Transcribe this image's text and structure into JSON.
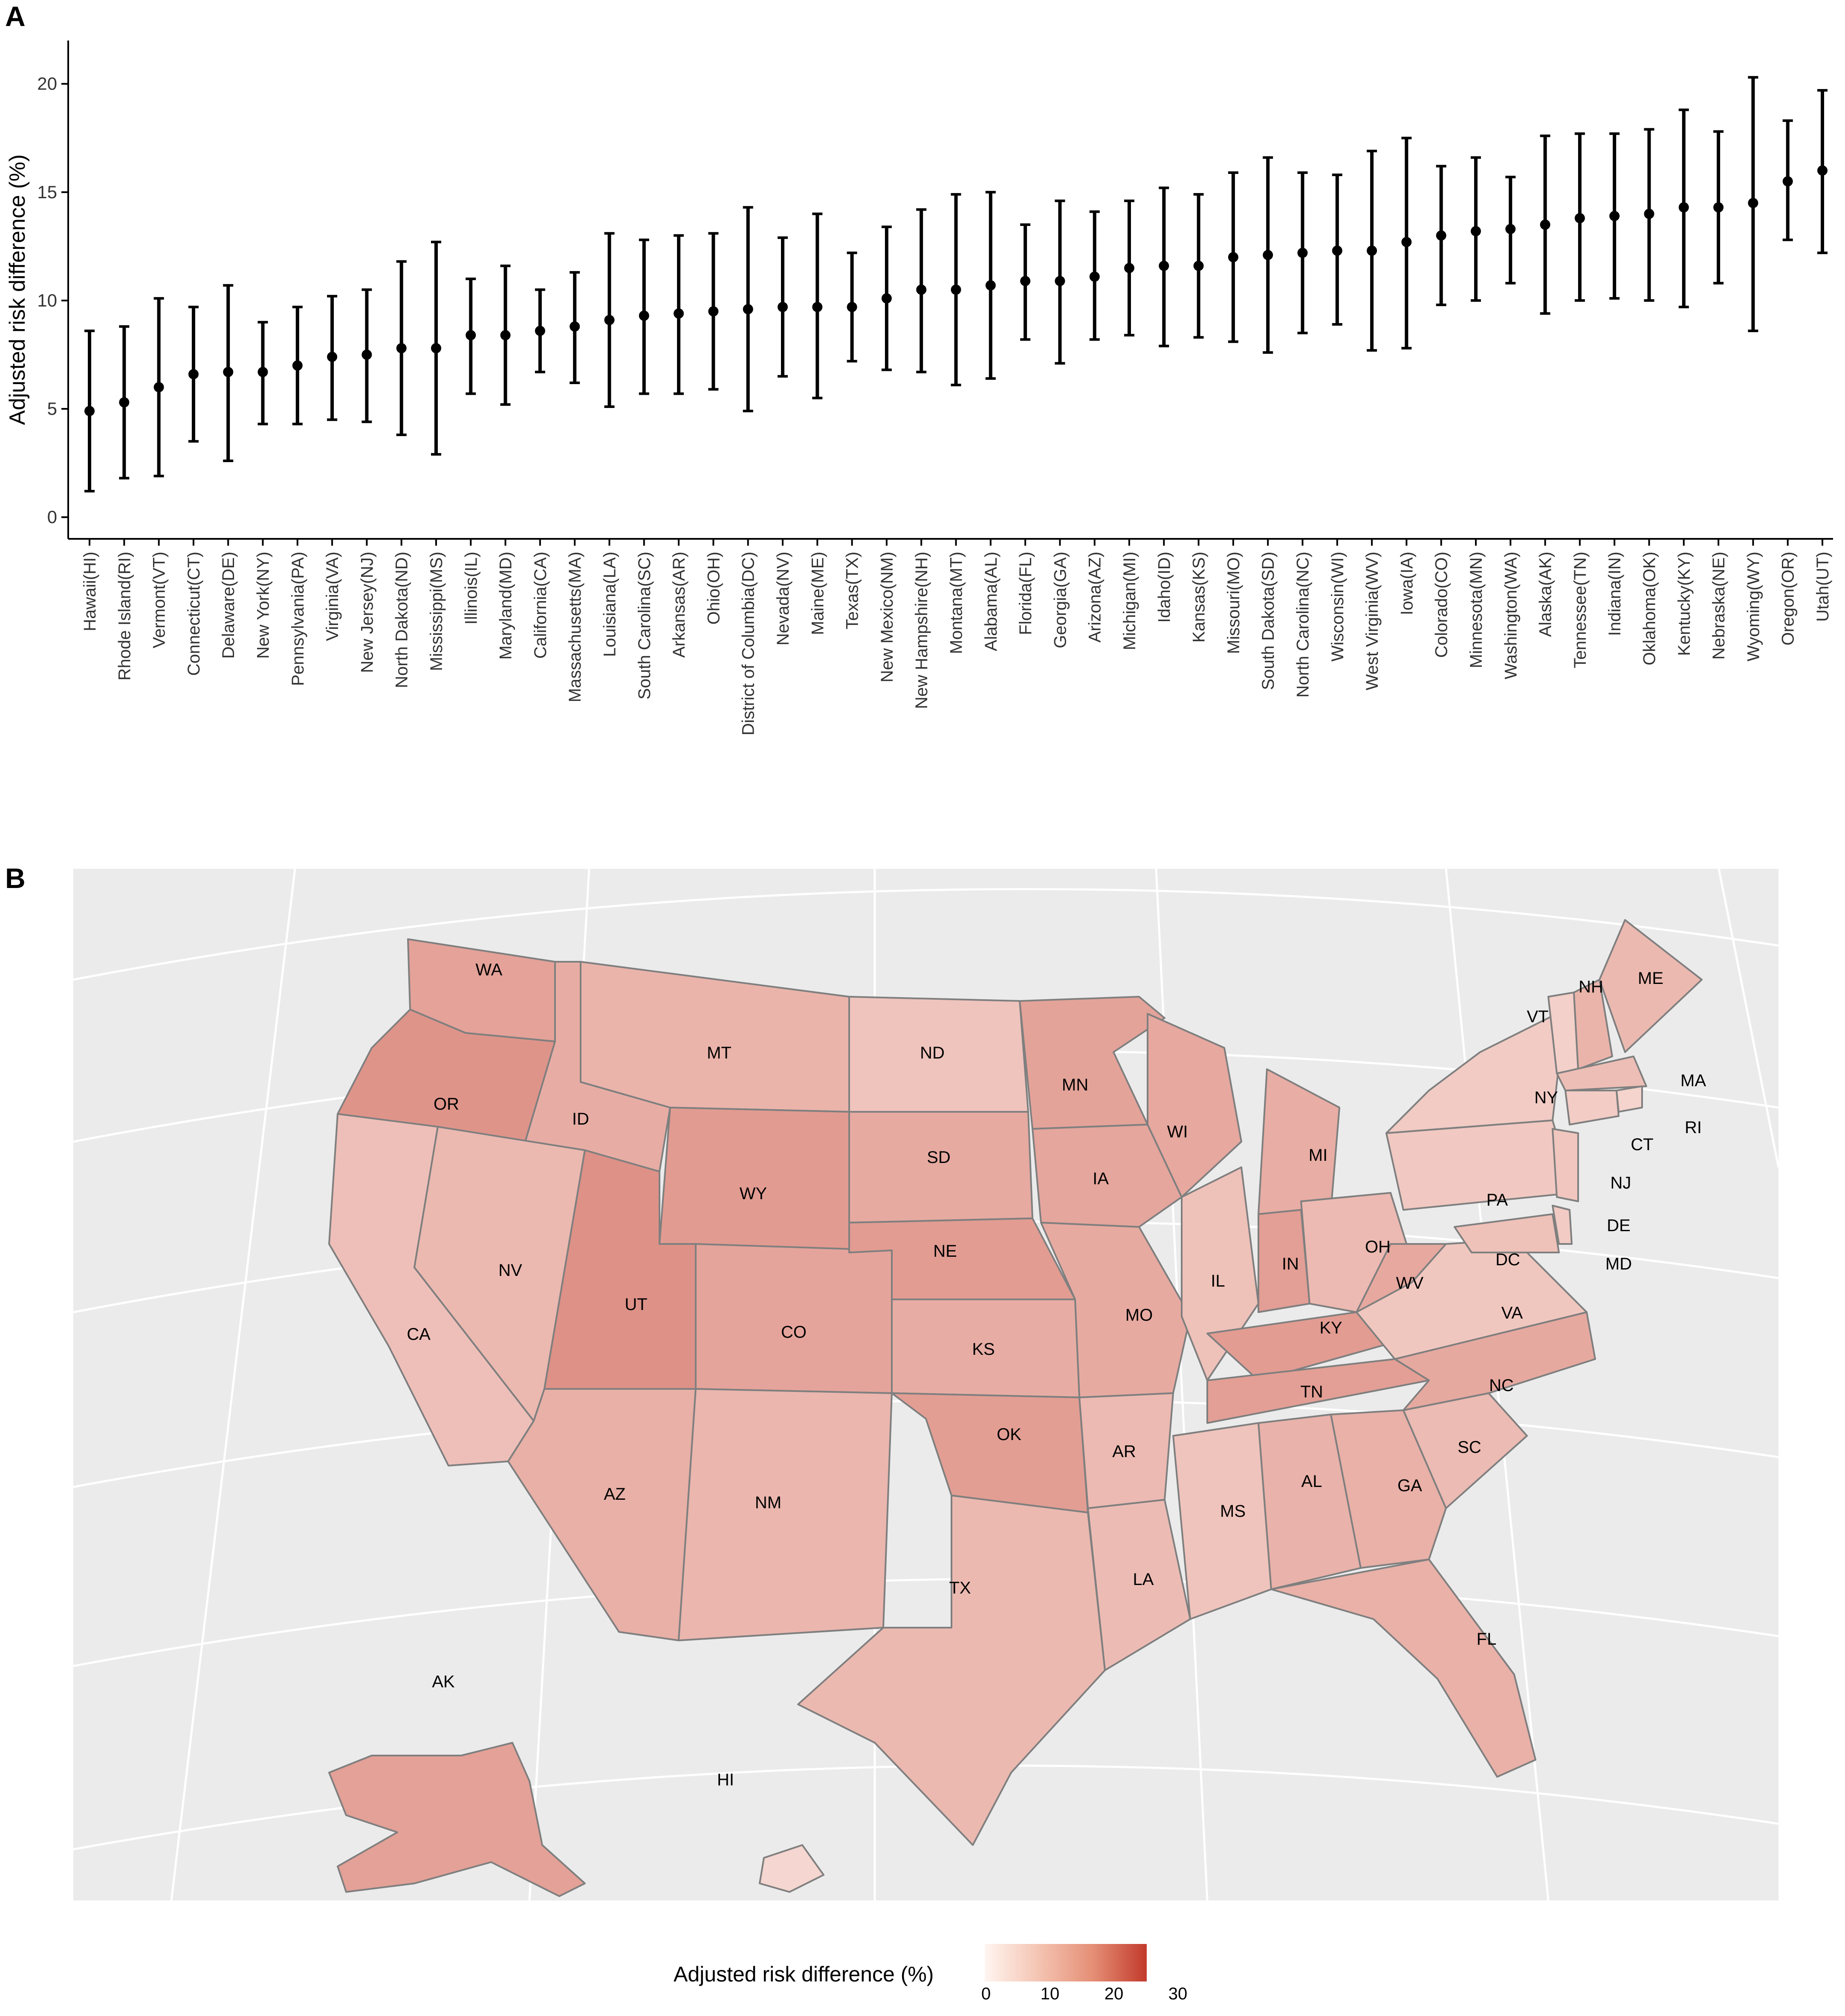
{
  "panel_a_letter": "A",
  "panel_b_letter": "B",
  "chart_data": [
    {
      "type": "errorbar",
      "ylabel": "Adjusted risk difference (%)",
      "ylim": [
        -1,
        22
      ],
      "yticks": [
        0,
        5,
        10,
        15,
        20
      ],
      "grid": false,
      "categories": [
        "Hawaii(HI)",
        "Rhode Island(RI)",
        "Vermont(VT)",
        "Connecticut(CT)",
        "Delaware(DE)",
        "New York(NY)",
        "Pennsylvania(PA)",
        "Virginia(VA)",
        "New Jersey(NJ)",
        "North Dakota(ND)",
        "Mississippi(MS)",
        "Illinois(IL)",
        "Maryland(MD)",
        "California(CA)",
        "Massachusetts(MA)",
        "Louisiana(LA)",
        "South Carolina(SC)",
        "Arkansas(AR)",
        "Ohio(OH)",
        "District of Columbia(DC)",
        "Nevada(NV)",
        "Maine(ME)",
        "Texas(TX)",
        "New Mexico(NM)",
        "New Hampshire(NH)",
        "Montana(MT)",
        "Alabama(AL)",
        "Florida(FL)",
        "Georgia(GA)",
        "Arizona(AZ)",
        "Michigan(MI)",
        "Idaho(ID)",
        "Kansas(KS)",
        "Missouri(MO)",
        "South Dakota(SD)",
        "North Carolina(NC)",
        "Wisconsin(WI)",
        "West Virginia(WV)",
        "Iowa(IA)",
        "Colorado(CO)",
        "Minnesota(MN)",
        "Washington(WA)",
        "Alaska(AK)",
        "Tennessee(TN)",
        "Indiana(IN)",
        "Oklahoma(OK)",
        "Kentucky(KY)",
        "Nebraska(NE)",
        "Wyoming(WY)",
        "Oregon(OR)",
        "Utah(UT)"
      ],
      "values": [
        4.9,
        5.3,
        6.0,
        6.6,
        6.7,
        6.7,
        7.0,
        7.4,
        7.5,
        7.8,
        7.8,
        8.4,
        8.4,
        8.6,
        8.8,
        9.1,
        9.3,
        9.4,
        9.5,
        9.6,
        9.7,
        9.7,
        9.7,
        10.1,
        10.5,
        10.5,
        10.7,
        10.9,
        10.9,
        11.1,
        11.5,
        11.6,
        11.6,
        12.0,
        12.1,
        12.2,
        12.3,
        12.3,
        12.7,
        13.0,
        13.2,
        13.3,
        13.5,
        13.8,
        13.9,
        14.0,
        14.3,
        14.3,
        14.5,
        15.5,
        16.0
      ],
      "lower": [
        1.2,
        1.8,
        1.9,
        3.5,
        2.6,
        4.3,
        4.3,
        4.5,
        4.4,
        3.8,
        2.9,
        5.7,
        5.2,
        6.7,
        6.2,
        5.1,
        5.7,
        5.7,
        5.9,
        4.9,
        6.5,
        5.5,
        7.2,
        6.8,
        6.7,
        6.1,
        6.4,
        8.2,
        7.1,
        8.2,
        8.4,
        7.9,
        8.3,
        8.1,
        7.6,
        8.5,
        8.9,
        7.7,
        7.8,
        9.8,
        10.0,
        10.8,
        9.4,
        10.0,
        10.1,
        10.0,
        9.7,
        10.8,
        8.6,
        12.8,
        12.2
      ],
      "upper": [
        8.6,
        8.8,
        10.1,
        9.7,
        10.7,
        9.0,
        9.7,
        10.2,
        10.5,
        11.8,
        12.7,
        11.0,
        11.6,
        10.5,
        11.3,
        13.1,
        12.8,
        13.0,
        13.1,
        14.3,
        12.9,
        14.0,
        12.2,
        13.4,
        14.2,
        14.9,
        15.0,
        13.5,
        14.6,
        14.1,
        14.6,
        15.2,
        14.9,
        15.9,
        16.6,
        15.9,
        15.8,
        16.9,
        17.5,
        16.2,
        16.6,
        15.7,
        17.6,
        17.7,
        17.7,
        17.9,
        18.8,
        17.8,
        20.3,
        18.3,
        19.7
      ]
    },
    {
      "type": "choropleth",
      "legend_title": "Adjusted risk difference (%)",
      "legend_ticks": [
        "0",
        "10",
        "20",
        "30"
      ],
      "scale_min": 0,
      "scale_max": 30,
      "color_low": "#fff5f0",
      "color_high": "#c23a2b",
      "states": [
        {
          "abbr": "WA",
          "value": 13.3
        },
        {
          "abbr": "OR",
          "value": 15.5
        },
        {
          "abbr": "CA",
          "value": 8.6
        },
        {
          "abbr": "ID",
          "value": 11.6
        },
        {
          "abbr": "NV",
          "value": 9.7
        },
        {
          "abbr": "MT",
          "value": 10.5
        },
        {
          "abbr": "WY",
          "value": 14.5
        },
        {
          "abbr": "UT",
          "value": 16.0
        },
        {
          "abbr": "AZ",
          "value": 11.1
        },
        {
          "abbr": "CO",
          "value": 13.0
        },
        {
          "abbr": "NM",
          "value": 10.1
        },
        {
          "abbr": "ND",
          "value": 7.8
        },
        {
          "abbr": "SD",
          "value": 12.1
        },
        {
          "abbr": "NE",
          "value": 14.3
        },
        {
          "abbr": "KS",
          "value": 11.6
        },
        {
          "abbr": "OK",
          "value": 14.0
        },
        {
          "abbr": "TX",
          "value": 9.7
        },
        {
          "abbr": "MN",
          "value": 13.2
        },
        {
          "abbr": "IA",
          "value": 12.7
        },
        {
          "abbr": "MO",
          "value": 12.0
        },
        {
          "abbr": "AR",
          "value": 9.4
        },
        {
          "abbr": "LA",
          "value": 9.1
        },
        {
          "abbr": "WI",
          "value": 12.3
        },
        {
          "abbr": "IL",
          "value": 8.4
        },
        {
          "abbr": "MI",
          "value": 11.5
        },
        {
          "abbr": "IN",
          "value": 13.9
        },
        {
          "abbr": "OH",
          "value": 9.5
        },
        {
          "abbr": "KY",
          "value": 14.3
        },
        {
          "abbr": "TN",
          "value": 13.8
        },
        {
          "abbr": "MS",
          "value": 7.8
        },
        {
          "abbr": "AL",
          "value": 10.7
        },
        {
          "abbr": "GA",
          "value": 10.9
        },
        {
          "abbr": "FL",
          "value": 10.9
        },
        {
          "abbr": "SC",
          "value": 9.3
        },
        {
          "abbr": "NC",
          "value": 12.2
        },
        {
          "abbr": "VA",
          "value": 7.4
        },
        {
          "abbr": "WV",
          "value": 12.3
        },
        {
          "abbr": "PA",
          "value": 7.0
        },
        {
          "abbr": "NY",
          "value": 6.7
        },
        {
          "abbr": "VT",
          "value": 6.0
        },
        {
          "abbr": "NH",
          "value": 10.5
        },
        {
          "abbr": "ME",
          "value": 9.7
        },
        {
          "abbr": "MA",
          "value": 8.8
        },
        {
          "abbr": "RI",
          "value": 5.3
        },
        {
          "abbr": "CT",
          "value": 6.6
        },
        {
          "abbr": "NJ",
          "value": 7.5
        },
        {
          "abbr": "DE",
          "value": 6.7
        },
        {
          "abbr": "MD",
          "value": 8.4
        },
        {
          "abbr": "DC",
          "value": 9.6
        },
        {
          "abbr": "AK",
          "value": 13.5
        },
        {
          "abbr": "HI",
          "value": 4.9
        }
      ]
    }
  ]
}
